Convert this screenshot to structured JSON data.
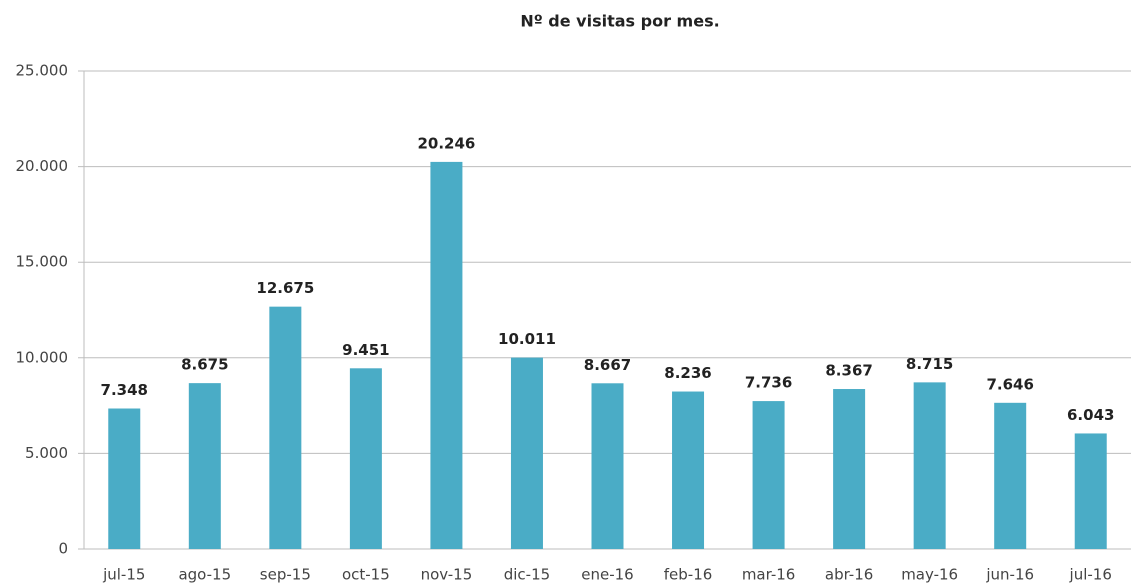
{
  "chart_data": {
    "type": "bar",
    "title": "Nº de visitas por mes.",
    "categories": [
      "jul-15",
      "ago-15",
      "sep-15",
      "oct-15",
      "nov-15",
      "dic-15",
      "ene-16",
      "feb-16",
      "mar-16",
      "abr-16",
      "may-16",
      "jun-16",
      "jul-16"
    ],
    "values": [
      7348,
      8675,
      12675,
      9451,
      20246,
      10011,
      8667,
      8236,
      7736,
      8367,
      8715,
      7646,
      6043
    ],
    "value_labels": [
      "7.348",
      "8.675",
      "12.675",
      "9.451",
      "20.246",
      "10.011",
      "8.667",
      "8.236",
      "7.736",
      "8.367",
      "8.715",
      "7.646",
      "6.043"
    ],
    "color": "#4aacc6",
    "ylim": [
      0,
      25000
    ],
    "yticks": [
      0,
      {
        "value": 5000,
        "label": "5.000"
      },
      {
        "value": 10000,
        "label": "10.000"
      },
      {
        "value": 15000,
        "label": "15.000"
      },
      {
        "value": 20000,
        "label": "20.000"
      },
      {
        "value": 25000,
        "label": "25.000"
      }
    ],
    "grid": true
  }
}
